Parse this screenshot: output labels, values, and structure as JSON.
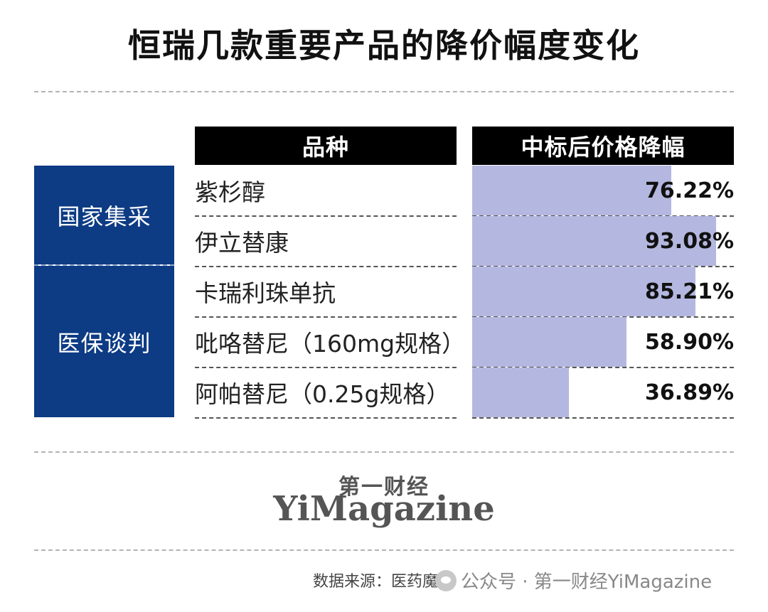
{
  "title": "恒瑞几款重要产品的降价幅度变化",
  "table": {
    "header_product": "品种",
    "header_drop": "中标后价格降幅",
    "categories": [
      "国家集采",
      "医保谈判"
    ],
    "rows": [
      {
        "category": "国家集采",
        "product": "紫杉醇",
        "drop_label": "76.22%"
      },
      {
        "category": "国家集采",
        "product": "伊立替康",
        "drop_label": "93.08%"
      },
      {
        "category": "医保谈判",
        "product": "卡瑞利珠单抗",
        "drop_label": "85.21%"
      },
      {
        "category": "医保谈判",
        "product": "吡咯替尼（160mg规格）",
        "drop_label": "58.90%"
      },
      {
        "category": "医保谈判",
        "product": "阿帕替尼（0.25g规格）",
        "drop_label": "36.89%"
      }
    ]
  },
  "chart_data": {
    "type": "bar",
    "orientation": "horizontal",
    "title": "恒瑞几款重要产品的降价幅度变化",
    "categories": [
      "紫杉醇",
      "伊立替康",
      "卡瑞利珠单抗",
      "吡咯替尼（160mg规格）",
      "阿帕替尼（0.25g规格）"
    ],
    "values": [
      76.22,
      93.08,
      85.21,
      58.9,
      36.89
    ],
    "xlabel": "中标后价格降幅",
    "ylabel": "品种",
    "xlim": [
      0,
      100
    ],
    "groups": [
      {
        "name": "国家集采",
        "members": [
          "紫杉醇",
          "伊立替康"
        ]
      },
      {
        "name": "医保谈判",
        "members": [
          "卡瑞利珠单抗",
          "吡咯替尼（160mg规格）",
          "阿帕替尼（0.25g规格）"
        ]
      }
    ],
    "grid": false,
    "colors": {
      "bar": "#b4b8e0",
      "category_bg": "#0d3b84",
      "header_bg": "#000000"
    }
  },
  "brand": {
    "cn": "第一财经",
    "en": "YiMagazine"
  },
  "source": "数据来源：医药魔方",
  "watermark": "公众号 · 第一财经YiMagazine"
}
